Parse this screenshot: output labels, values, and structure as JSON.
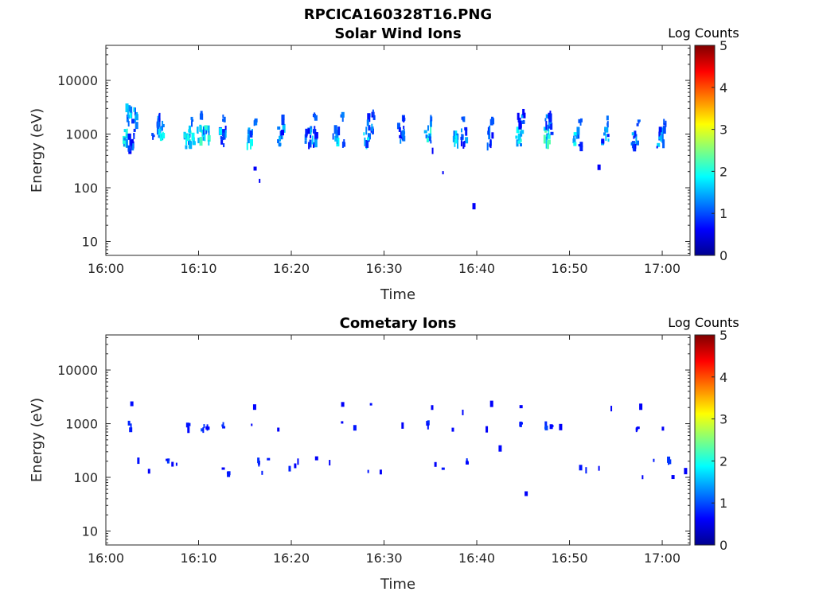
{
  "figure_title": "RPCICA160328T16.PNG",
  "chart_data": [
    {
      "type": "heatmap",
      "title": "Solar Wind Ions",
      "xlabel": "Time",
      "ylabel": "Energy (eV)",
      "x_range": [
        "16:00",
        "17:03"
      ],
      "x_ticks": [
        "16:00",
        "16:10",
        "16:20",
        "16:30",
        "16:40",
        "16:50",
        "17:00"
      ],
      "y_scale": "log",
      "y_range": [
        5.5,
        45000
      ],
      "y_ticks": [
        "10",
        "100",
        "1000",
        "10000"
      ],
      "colorbar": {
        "label": "Log Counts",
        "range": [
          0,
          5
        ],
        "ticks": [
          "0",
          "1",
          "2",
          "3",
          "4",
          "5"
        ],
        "colormap": "jet"
      },
      "cells": [
        [
          2.5,
          2200,
          1.8
        ],
        [
          3.0,
          2000,
          2.0
        ],
        [
          2.3,
          800,
          2.2
        ],
        [
          2.6,
          650,
          1.5
        ],
        [
          3.1,
          1000,
          1.0
        ],
        [
          5.1,
          950,
          1.0
        ],
        [
          5.9,
          1800,
          1.5
        ],
        [
          5.9,
          900,
          2.0
        ],
        [
          8.8,
          800,
          2.3
        ],
        [
          9.2,
          850,
          2.0
        ],
        [
          9.3,
          1700,
          1.2
        ],
        [
          10.2,
          900,
          2.5
        ],
        [
          10.9,
          1000,
          2.2
        ],
        [
          10.4,
          2200,
          1.2
        ],
        [
          12.6,
          850,
          1.8
        ],
        [
          12.7,
          1900,
          1.2
        ],
        [
          15.5,
          850,
          2.0
        ],
        [
          16.1,
          1800,
          1.3
        ],
        [
          16.2,
          250,
          0.5
        ],
        [
          16.6,
          140,
          0.6
        ],
        [
          18.9,
          900,
          1.8
        ],
        [
          19.0,
          1800,
          1.0
        ],
        [
          21.8,
          850,
          1.5
        ],
        [
          22.4,
          900,
          1.7
        ],
        [
          22.6,
          1900,
          1.2
        ],
        [
          24.8,
          850,
          2.0
        ],
        [
          25.5,
          2000,
          1.3
        ],
        [
          25.6,
          700,
          1.0
        ],
        [
          28.1,
          800,
          2.0
        ],
        [
          28.6,
          1600,
          1.5
        ],
        [
          28.9,
          2200,
          1.2
        ],
        [
          31.9,
          1000,
          1.5
        ],
        [
          32.2,
          1700,
          1.0
        ],
        [
          32.0,
          900,
          1.2
        ],
        [
          34.8,
          900,
          2.2
        ],
        [
          35.1,
          1800,
          1.3
        ],
        [
          35.3,
          450,
          0.5
        ],
        [
          36.3,
          185,
          0.6
        ],
        [
          37.8,
          800,
          2.2
        ],
        [
          38.5,
          1900,
          1.2
        ],
        [
          38.6,
          900,
          1.5
        ],
        [
          39.8,
          40,
          0.6
        ],
        [
          41.5,
          850,
          1.8
        ],
        [
          41.7,
          1800,
          1.2
        ],
        [
          44.6,
          900,
          2.3
        ],
        [
          44.8,
          1800,
          1.5
        ],
        [
          47.5,
          900,
          2.4
        ],
        [
          47.7,
          1800,
          1.5
        ],
        [
          48.0,
          1200,
          1.0
        ],
        [
          50.8,
          850,
          2.0
        ],
        [
          51.2,
          1800,
          1.2
        ],
        [
          51.2,
          600,
          1.0
        ],
        [
          53.3,
          240,
          0.5
        ],
        [
          53.9,
          850,
          1.8
        ],
        [
          54.2,
          1800,
          1.3
        ],
        [
          57.0,
          800,
          1.8
        ],
        [
          57.4,
          1700,
          1.2
        ],
        [
          57.0,
          600,
          1.0
        ],
        [
          59.9,
          850,
          1.7
        ],
        [
          60.3,
          1800,
          1.2
        ],
        [
          59.5,
          550,
          0.8
        ]
      ]
    },
    {
      "type": "heatmap",
      "title": "Cometary Ions",
      "xlabel": "Time",
      "ylabel": "Energy (eV)",
      "x_range": [
        "16:00",
        "17:03"
      ],
      "x_ticks": [
        "16:00",
        "16:10",
        "16:20",
        "16:30",
        "16:40",
        "16:50",
        "17:00"
      ],
      "y_scale": "log",
      "y_range": [
        5.5,
        45000
      ],
      "y_ticks": [
        "10",
        "100",
        "1000",
        "10000"
      ],
      "colorbar": {
        "label": "Log Counts",
        "range": [
          0,
          5
        ],
        "ticks": [
          "0",
          "1",
          "2",
          "3",
          "4",
          "5"
        ],
        "colormap": "jet"
      },
      "cells": [
        [
          2.6,
          900,
          0.9
        ],
        [
          2.9,
          2100,
          0.7
        ],
        [
          3.6,
          200,
          0.8
        ],
        [
          4.7,
          140,
          0.7
        ],
        [
          6.7,
          230,
          0.9
        ],
        [
          7.1,
          160,
          0.8
        ],
        [
          7.6,
          200,
          0.8
        ],
        [
          8.9,
          850,
          0.9
        ],
        [
          10.5,
          900,
          1.0
        ],
        [
          10.9,
          800,
          0.9
        ],
        [
          12.6,
          900,
          0.9
        ],
        [
          12.7,
          170,
          0.8
        ],
        [
          13.2,
          110,
          0.9
        ],
        [
          15.7,
          900,
          0.8
        ],
        [
          16.1,
          2300,
          0.7
        ],
        [
          16.5,
          200,
          0.9
        ],
        [
          16.9,
          140,
          0.8
        ],
        [
          17.5,
          200,
          0.8
        ],
        [
          18.6,
          900,
          0.7
        ],
        [
          19.7,
          130,
          0.8
        ],
        [
          20.3,
          150,
          0.8
        ],
        [
          20.6,
          200,
          0.8
        ],
        [
          22.7,
          230,
          0.7
        ],
        [
          24.1,
          160,
          0.8
        ],
        [
          25.4,
          1000,
          0.7
        ],
        [
          25.6,
          2000,
          0.6
        ],
        [
          26.8,
          900,
          0.8
        ],
        [
          28.7,
          2200,
          0.7
        ],
        [
          28.4,
          150,
          0.8
        ],
        [
          29.7,
          120,
          0.8
        ],
        [
          31.9,
          1000,
          0.8
        ],
        [
          34.8,
          900,
          0.9
        ],
        [
          35.2,
          2200,
          0.6
        ],
        [
          35.6,
          200,
          0.7
        ],
        [
          36.4,
          160,
          0.8
        ],
        [
          37.5,
          900,
          0.8
        ],
        [
          38.4,
          1900,
          0.7
        ],
        [
          39.0,
          200,
          0.9
        ],
        [
          41.2,
          700,
          0.6
        ],
        [
          41.7,
          2100,
          0.6
        ],
        [
          42.5,
          300,
          0.7
        ],
        [
          44.7,
          950,
          1.0
        ],
        [
          44.8,
          2100,
          0.6
        ],
        [
          45.3,
          50,
          0.7
        ],
        [
          47.5,
          850,
          1.0
        ],
        [
          48.1,
          900,
          0.9
        ],
        [
          49.0,
          900,
          0.7
        ],
        [
          51.2,
          160,
          0.8
        ],
        [
          51.9,
          150,
          0.8
        ],
        [
          53.1,
          150,
          0.8
        ],
        [
          54.6,
          2200,
          0.6
        ],
        [
          57.3,
          750,
          0.9
        ],
        [
          57.6,
          2300,
          0.6
        ],
        [
          57.9,
          90,
          0.8
        ],
        [
          59.0,
          190,
          0.8
        ],
        [
          60.2,
          900,
          0.8
        ],
        [
          60.8,
          180,
          0.9
        ],
        [
          61.2,
          120,
          0.8
        ],
        [
          62.4,
          120,
          0.7
        ]
      ]
    }
  ]
}
